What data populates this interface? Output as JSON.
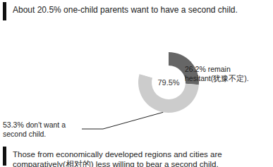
{
  "chart_data": {
    "type": "pie",
    "title": "About 20.5% one-child parents want to have a second child.",
    "footnote": "Those from economically developed regions and cities are comparatively(相对的) less willing to bear a second child.",
    "center_label": "79.5%",
    "values": [
      26.2,
      53.3,
      20.5
    ],
    "value_labels": [
      "26.2% remain hesitant(犹豫不定).",
      "53.3% don't want a second child.",
      null
    ],
    "colors": [
      "#666666",
      "#cccccc",
      "#ffffff"
    ],
    "data_labels": true
  }
}
